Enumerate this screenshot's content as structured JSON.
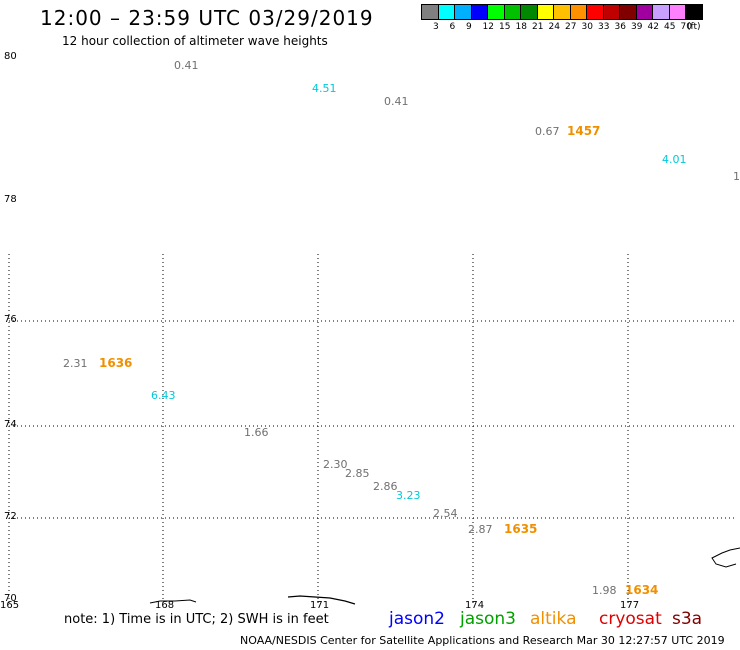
{
  "title": "12:00 – 23:59 UTC 03/29/2019",
  "subtitle": "12 hour collection of altimeter wave heights",
  "legend": {
    "colors": [
      "#808080",
      "#00ffff",
      "#00b0ff",
      "#0000ff",
      "#00ff00",
      "#00c000",
      "#008800",
      "#ffff00",
      "#ffc000",
      "#ff9000",
      "#ff0000",
      "#c00000",
      "#800000",
      "#a000a0",
      "#c8a0ff",
      "#ff80ff",
      "#000000"
    ],
    "labels": [
      "3",
      "6",
      "9",
      "12",
      "15",
      "18",
      "21",
      "24",
      "27",
      "30",
      "33",
      "36",
      "39",
      "42",
      "45",
      "70",
      "(ft)"
    ]
  },
  "lat_labels": [
    "80",
    "78",
    "76",
    "74",
    "72",
    "70"
  ],
  "lon_labels": [
    "165",
    "168",
    "171",
    "174",
    "177"
  ],
  "wave_values": [
    {
      "text": "0.41",
      "color": "#707070"
    },
    {
      "text": "4.51",
      "color": "#00c8d8"
    },
    {
      "text": "0.41",
      "color": "#707070"
    },
    {
      "text": "0.67",
      "color": "#707070"
    },
    {
      "text": "4.01",
      "color": "#00c8d8"
    },
    {
      "text": "1",
      "color": "#707070"
    },
    {
      "text": "2.31",
      "color": "#707070"
    },
    {
      "text": "6.43",
      "color": "#00c8d8"
    },
    {
      "text": "1.66",
      "color": "#707070"
    },
    {
      "text": "2.30",
      "color": "#707070"
    },
    {
      "text": "2.85",
      "color": "#707070"
    },
    {
      "text": "2.86",
      "color": "#707070"
    },
    {
      "text": "3.23",
      "color": "#00c8d8"
    },
    {
      "text": "2.54",
      "color": "#707070"
    },
    {
      "text": "2.87",
      "color": "#707070"
    },
    {
      "text": "1.98",
      "color": "#707070"
    }
  ],
  "times": [
    {
      "text": "1457",
      "color": "#f09000"
    },
    {
      "text": "1636",
      "color": "#f09000"
    },
    {
      "text": "1635",
      "color": "#f09000"
    },
    {
      "text": "1634",
      "color": "#f09000"
    }
  ],
  "note": "note: 1) Time is in UTC; 2) SWH is in feet",
  "satellites": [
    {
      "name": "jason2",
      "color": "#0000ff"
    },
    {
      "name": "jason3",
      "color": "#00a000"
    },
    {
      "name": "altika",
      "color": "#f09000"
    },
    {
      "name": "cryosat",
      "color": "#e00000"
    },
    {
      "name": "s3a",
      "color": "#800000"
    }
  ],
  "footer": "NOAA/NESDIS Center for Satellite Applications and Research    Mar 30 12:27:57 UTC 2019"
}
